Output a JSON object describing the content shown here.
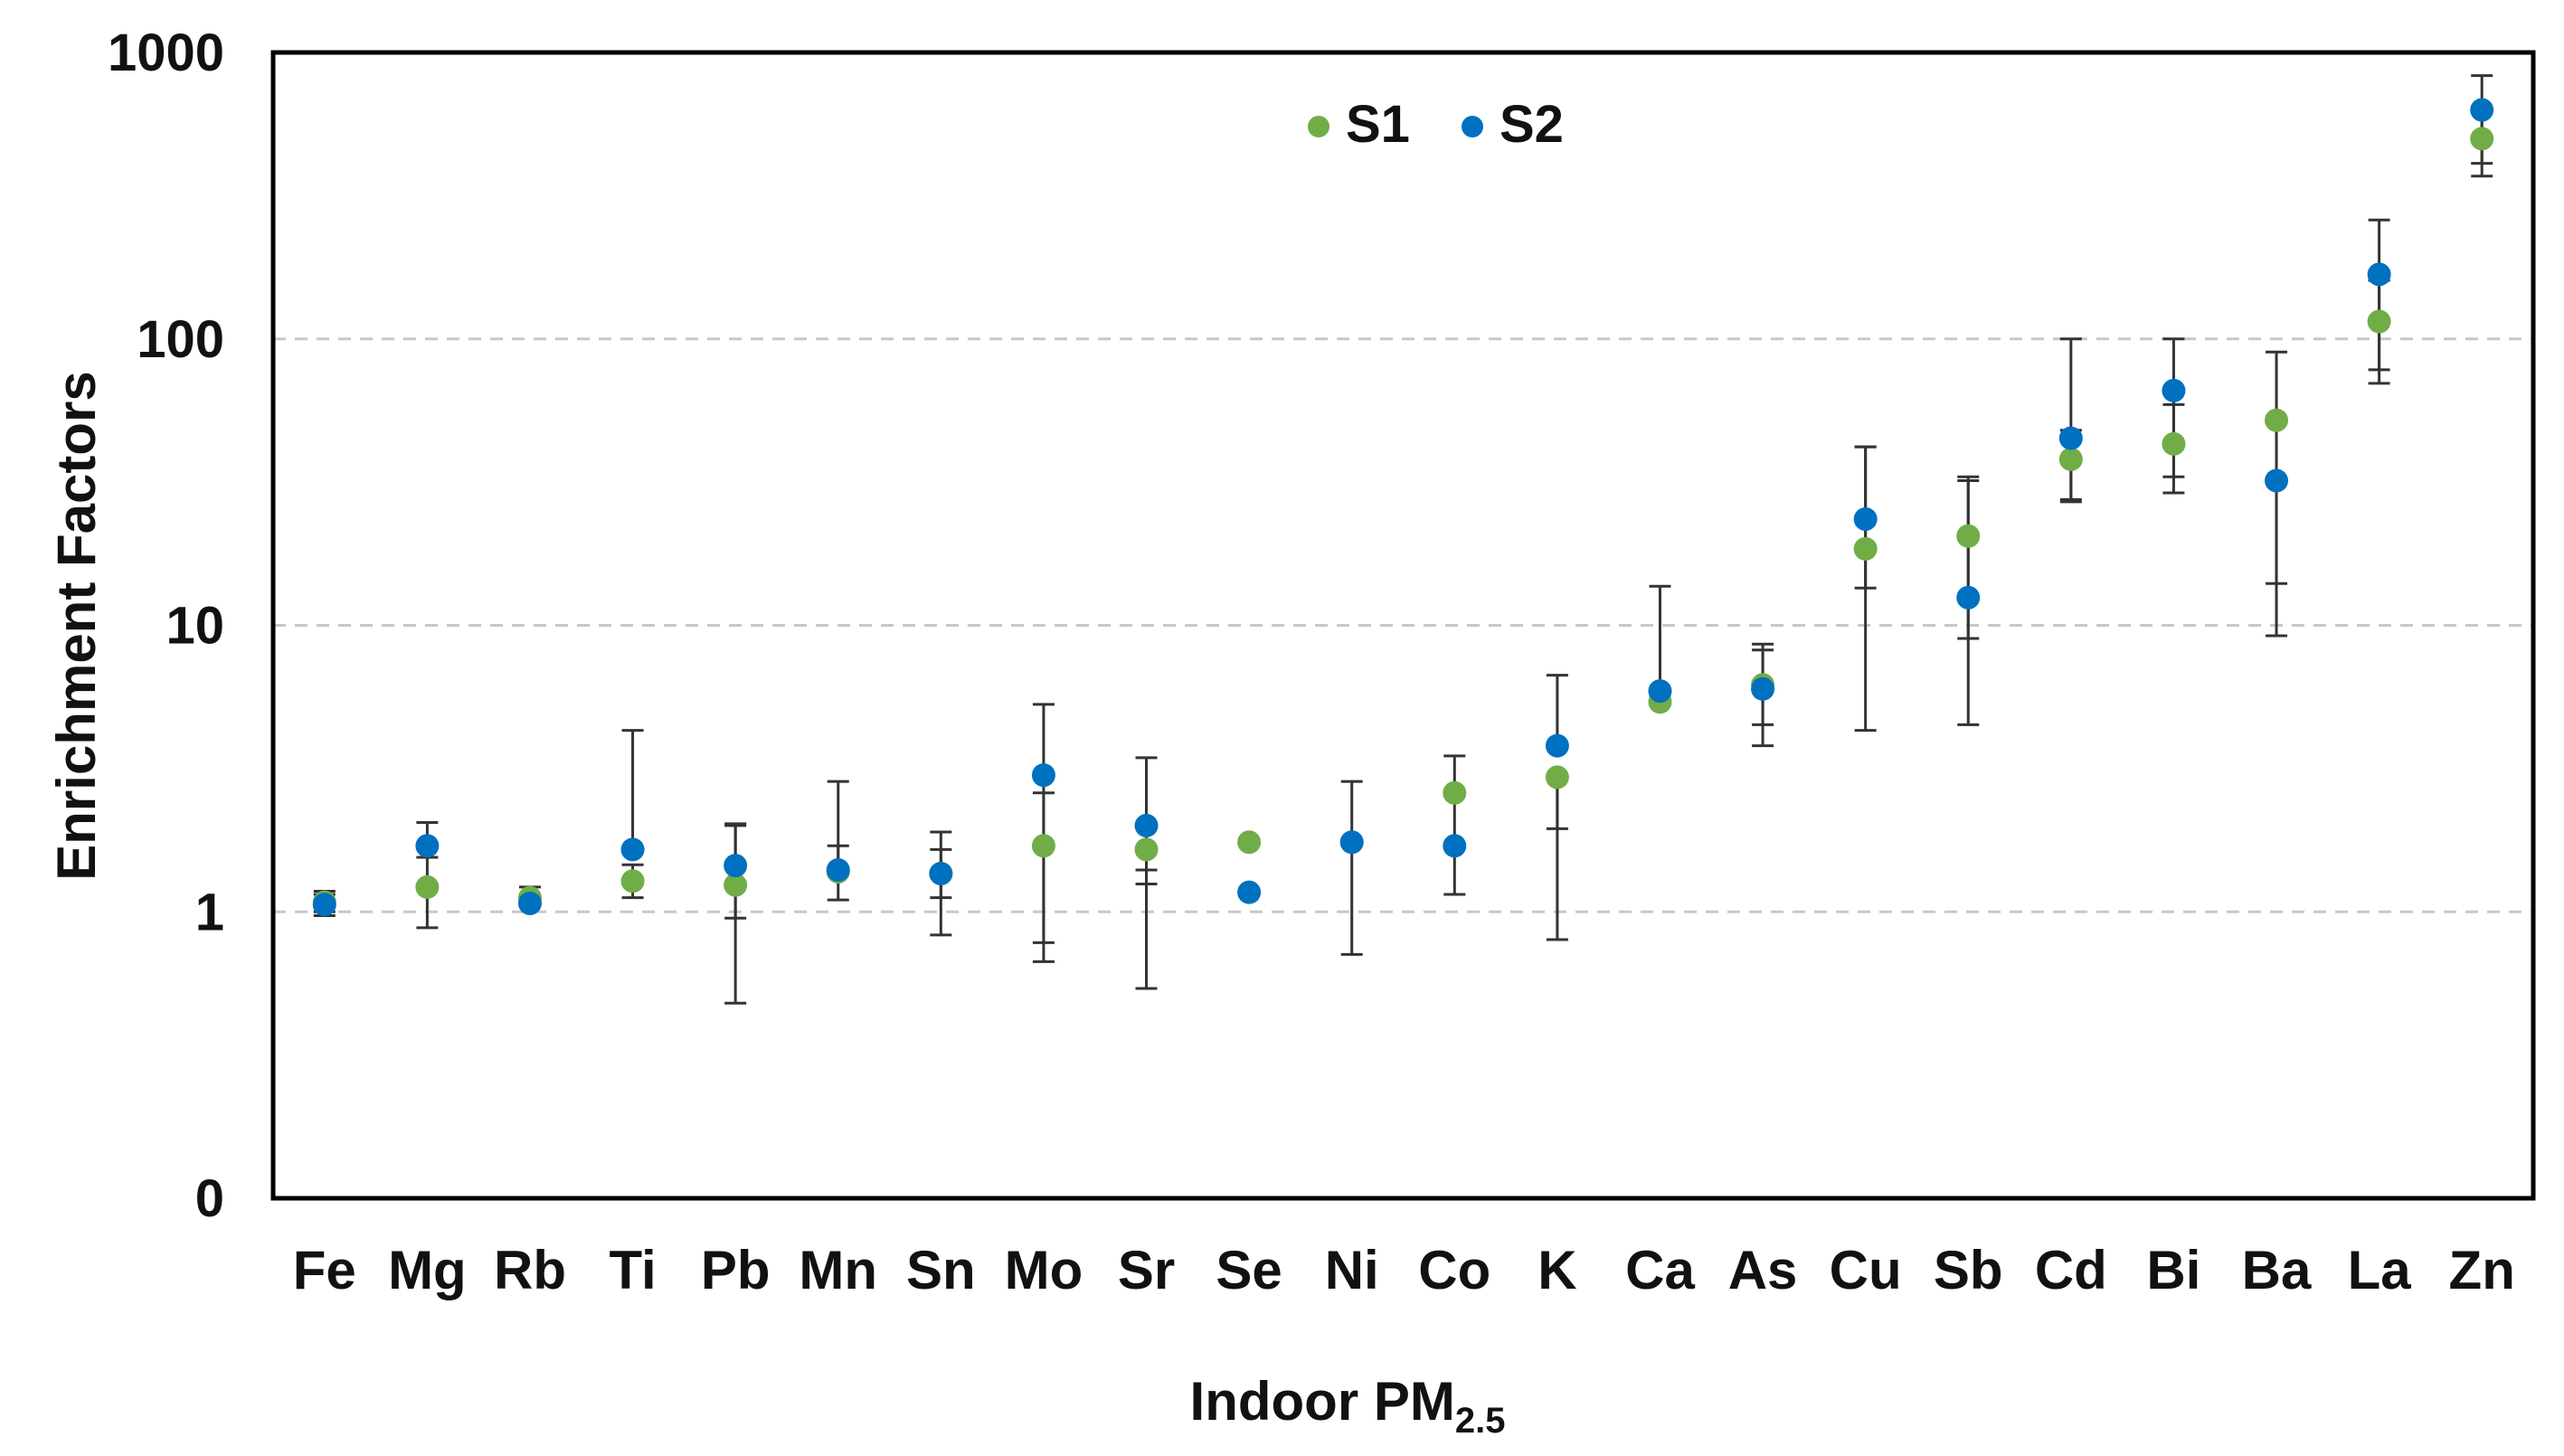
{
  "chart_data": {
    "type": "scatter",
    "y_scale": "log",
    "ylim": [
      0.1,
      1000
    ],
    "y_ticks": [
      {
        "value": 1000,
        "label": "1000"
      },
      {
        "value": 100,
        "label": "100"
      },
      {
        "value": 10,
        "label": "10"
      },
      {
        "value": 1,
        "label": "1"
      },
      {
        "value": 0.1,
        "label": "0"
      }
    ],
    "grid": "horizontal dashed",
    "ylabel": "Enrichment Factors",
    "xlabel": {
      "main": "Indoor PM",
      "sub": "2.5"
    },
    "legend_position": "top-center",
    "categories": [
      "Fe",
      "Mg",
      "Rb",
      "Ti",
      "Pb",
      "Mn",
      "Sn",
      "Mo",
      "Sr",
      "Se",
      "Ni",
      "Co",
      "K",
      "Ca",
      "As",
      "Cu",
      "Sb",
      "Cd",
      "Bi",
      "Ba",
      "La",
      "Zn"
    ],
    "series": [
      {
        "name": "S1",
        "color": "#70ad47",
        "values": [
          1.08,
          1.22,
          1.12,
          1.28,
          1.24,
          1.38,
          1.36,
          1.7,
          1.65,
          1.75,
          1.75,
          2.6,
          2.95,
          5.4,
          6.2,
          18.5,
          20.5,
          38,
          43,
          52,
          115,
          500
        ],
        "error_low": [
          1.0,
          0.88,
          1.05,
          1.12,
          0.48,
          1.1,
          0.83,
          0.67,
          0.54,
          null,
          null,
          1.15,
          0.8,
          5.25,
          3.8,
          4.3,
          4.5,
          27,
          29,
          9.2,
          70,
          370
        ],
        "error_high": [
          1.18,
          1.55,
          1.22,
          1.46,
          2.0,
          1.7,
          1.65,
          2.6,
          1.4,
          null,
          null,
          3.5,
          1.95,
          5.7,
          8.2,
          42,
          33,
          48,
          59,
          90,
          160,
          620
        ]
      },
      {
        "name": "S2",
        "color": "#0070c0",
        "values": [
          1.06,
          1.7,
          1.07,
          1.65,
          1.45,
          1.4,
          1.36,
          3.0,
          2.0,
          1.17,
          1.75,
          1.7,
          3.8,
          5.9,
          6.0,
          23.5,
          12.5,
          45,
          66,
          32,
          168,
          630
        ],
        "error_low": [
          0.97,
          null,
          null,
          null,
          0.95,
          null,
          1.12,
          0.78,
          1.25,
          null,
          0.71,
          null,
          null,
          null,
          4.5,
          13.5,
          9.0,
          27.5,
          33,
          14,
          78,
          410
        ],
        "error_high": [
          1.15,
          2.05,
          null,
          4.3,
          2.03,
          2.85,
          1.9,
          5.3,
          3.45,
          null,
          2.85,
          null,
          6.7,
          13.7,
          8.6,
          42,
          32,
          100,
          100,
          null,
          260,
          830
        ]
      }
    ]
  }
}
